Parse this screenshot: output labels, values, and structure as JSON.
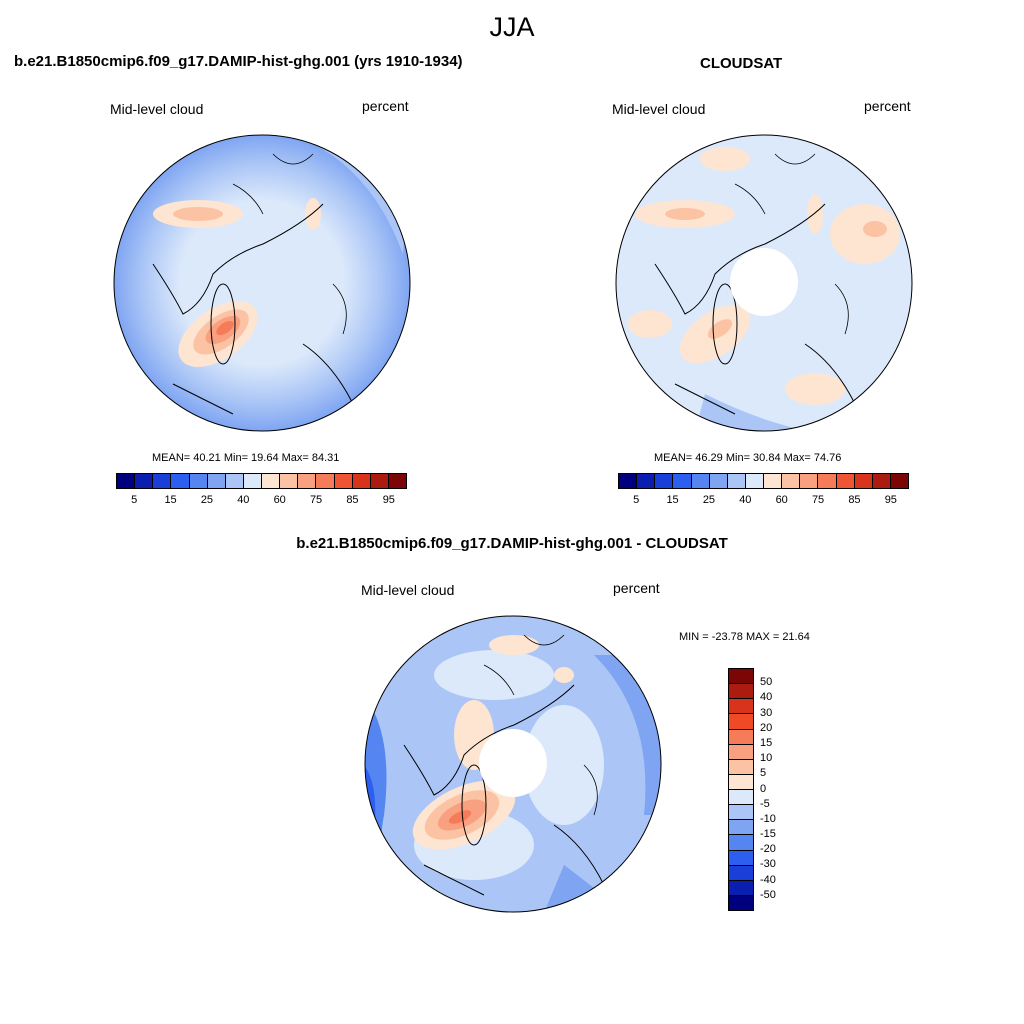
{
  "title": "JJA",
  "colors": {
    "abs_scale": [
      "#00007f",
      "#0a1fb0",
      "#1a3fd8",
      "#2c5ef0",
      "#5485f0",
      "#7ea4f2",
      "#abc6f6",
      "#dce9fb",
      "#fde5d2",
      "#fbc3a4",
      "#f8a07f",
      "#f57b59",
      "#ef5535",
      "#d8341c",
      "#ac1b10",
      "#7c0606"
    ],
    "diff_scale": [
      "#7c0606",
      "#ac1b10",
      "#d8341c",
      "#ef4a25",
      "#f57b59",
      "#f8a07f",
      "#fbc3a4",
      "#fde5d2",
      "#dce9fb",
      "#abc6f6",
      "#7ea4f2",
      "#5485f0",
      "#2c5ef0",
      "#1a3fd8",
      "#0a1fb0",
      "#00007f"
    ],
    "land_outline": "#000000"
  },
  "panels": [
    {
      "title": "b.e21.B1850cmip6.f09_g17.DAMIP-hist-ghg.001 (yrs 1910-1934)",
      "left_label": "Mid-level cloud",
      "right_label": "percent",
      "stats": "MEAN=  40.21  Min=  19.64  Max=  84.31",
      "ticks": [
        "5",
        "15",
        "25",
        "40",
        "60",
        "75",
        "85",
        "95"
      ]
    },
    {
      "title": "CLOUDSAT",
      "left_label": "Mid-level cloud",
      "right_label": "percent",
      "stats": "MEAN=  46.29  Min=  30.84  Max=  74.76",
      "ticks": [
        "5",
        "15",
        "25",
        "40",
        "60",
        "75",
        "85",
        "95"
      ]
    },
    {
      "title": "b.e21.B1850cmip6.f09_g17.DAMIP-hist-ghg.001 - CLOUDSAT",
      "left_label": "Mid-level cloud",
      "right_label": "percent",
      "stats": "MIN = -23.78 MAX =  21.64",
      "ticks": [
        "50",
        "40",
        "30",
        "20",
        "15",
        "10",
        "5",
        "0",
        "-5",
        "-10",
        "-15",
        "-20",
        "-30",
        "-40",
        "-50"
      ]
    }
  ]
}
